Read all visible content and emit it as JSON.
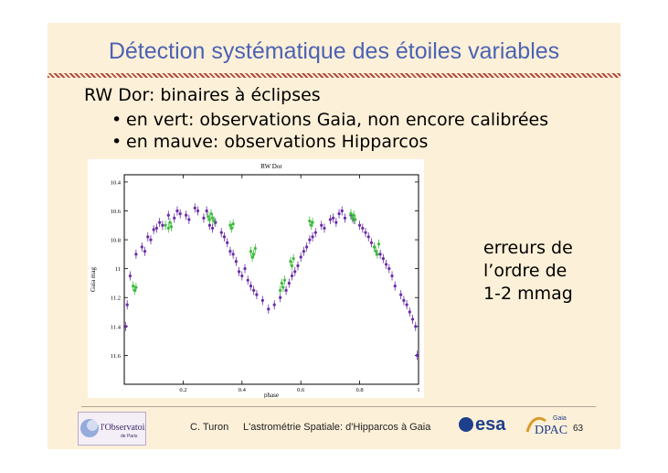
{
  "slide": {
    "title": "Détection systématique des étoiles variables",
    "heading": "RW Dor: binaires à éclipses",
    "bullets": [
      "en vert: observations Gaia, non encore calibrées",
      "en mauve: observations Hipparcos"
    ],
    "note_lines": [
      "erreurs de",
      "l’ordre de",
      "1-2 mmag"
    ],
    "footer": {
      "author": "C. Turon",
      "subtitle": "L'astrométrie Spatiale: d'Hipparcos à Gaia",
      "page": "63",
      "logo_obs_main": "l'Observatoire",
      "logo_obs_sub": "de Paris",
      "logo_esa": "esa",
      "logo_gaia": "Gaia",
      "logo_dpac": "DPAC"
    }
  },
  "colors": {
    "title": "#4b63b3",
    "hipparcos": "#6a2ca8",
    "gaia": "#3dbb3d",
    "slide_bg": "#fdf0d8"
  },
  "chart_data": {
    "type": "scatter",
    "title": "RW Dor",
    "xlabel": "phase",
    "ylabel": "Gaia mag",
    "xlim": [
      0,
      1
    ],
    "ylim": [
      10.35,
      11.8
    ],
    "y_inverted": true,
    "xticks": [
      0.2,
      0.4,
      0.6,
      0.8,
      1
    ],
    "yticks": [
      10.4,
      10.6,
      10.8,
      11,
      11.2,
      11.4,
      11.6
    ],
    "series": [
      {
        "name": "Hipparcos",
        "color": "#6a2ca8",
        "x": [
          0.005,
          0.01,
          0.02,
          0.04,
          0.06,
          0.07,
          0.08,
          0.09,
          0.1,
          0.11,
          0.12,
          0.13,
          0.15,
          0.17,
          0.18,
          0.19,
          0.21,
          0.22,
          0.24,
          0.25,
          0.27,
          0.28,
          0.29,
          0.3,
          0.31,
          0.33,
          0.34,
          0.35,
          0.36,
          0.37,
          0.38,
          0.39,
          0.4,
          0.41,
          0.42,
          0.43,
          0.44,
          0.45,
          0.47,
          0.49,
          0.51,
          0.53,
          0.55,
          0.56,
          0.57,
          0.58,
          0.59,
          0.6,
          0.61,
          0.62,
          0.63,
          0.64,
          0.65,
          0.67,
          0.68,
          0.7,
          0.71,
          0.72,
          0.73,
          0.74,
          0.75,
          0.77,
          0.78,
          0.8,
          0.81,
          0.82,
          0.83,
          0.84,
          0.85,
          0.87,
          0.88,
          0.89,
          0.9,
          0.91,
          0.92,
          0.94,
          0.95,
          0.96,
          0.97,
          0.98,
          0.99,
          0.995
        ],
        "y": [
          11.4,
          11.25,
          11.05,
          10.9,
          10.85,
          10.88,
          10.78,
          10.8,
          10.73,
          10.72,
          10.68,
          10.7,
          10.63,
          10.65,
          10.6,
          10.62,
          10.63,
          10.66,
          10.58,
          10.6,
          10.65,
          10.6,
          10.7,
          10.72,
          10.68,
          10.75,
          10.78,
          10.82,
          10.88,
          10.9,
          10.95,
          11.02,
          11.05,
          11.0,
          11.08,
          11.12,
          11.15,
          11.18,
          11.22,
          11.28,
          11.25,
          11.2,
          11.15,
          11.1,
          11.05,
          11.02,
          10.98,
          10.92,
          10.88,
          10.85,
          10.8,
          10.78,
          10.75,
          10.7,
          10.72,
          10.66,
          10.65,
          10.68,
          10.62,
          10.6,
          10.65,
          10.63,
          10.66,
          10.7,
          10.72,
          10.75,
          10.78,
          10.82,
          10.85,
          10.9,
          10.93,
          10.97,
          11.0,
          11.05,
          11.12,
          11.18,
          11.22,
          11.25,
          11.3,
          11.35,
          11.4,
          11.6
        ]
      },
      {
        "name": "Gaia",
        "color": "#3dbb3d",
        "x": [
          0.03,
          0.035,
          0.04,
          0.14,
          0.15,
          0.155,
          0.16,
          0.285,
          0.29,
          0.295,
          0.3,
          0.305,
          0.36,
          0.365,
          0.37,
          0.43,
          0.435,
          0.44,
          0.445,
          0.53,
          0.535,
          0.54,
          0.545,
          0.565,
          0.57,
          0.575,
          0.63,
          0.635,
          0.64,
          0.77,
          0.775,
          0.78,
          0.785,
          0.85,
          0.855,
          0.86,
          0.865
        ],
        "y": [
          11.12,
          11.15,
          11.13,
          10.7,
          10.72,
          10.68,
          10.71,
          10.64,
          10.66,
          10.62,
          10.65,
          10.67,
          10.7,
          10.72,
          10.69,
          10.88,
          10.92,
          10.9,
          10.86,
          11.15,
          11.1,
          11.13,
          11.08,
          10.95,
          10.98,
          10.93,
          10.67,
          10.7,
          10.68,
          10.62,
          10.65,
          10.63,
          10.66,
          10.85,
          10.88,
          10.9,
          10.83
        ]
      }
    ],
    "grid": false,
    "legend": "none"
  }
}
